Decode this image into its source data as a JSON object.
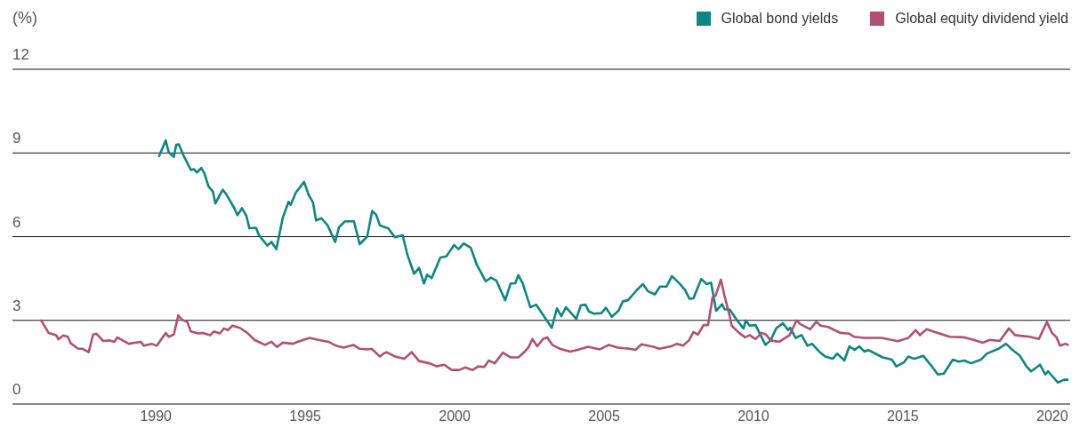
{
  "chart_data": {
    "type": "line",
    "ylabel": "(%)",
    "legend": "top right",
    "grid": "y",
    "line_style": "solid",
    "xlim": [
      1985.2,
      2020.6
    ],
    "xticks": [
      1990,
      1995,
      2000,
      2005,
      2010,
      2015,
      2020
    ],
    "ylim": [
      0,
      12
    ],
    "yticks": [
      0,
      3,
      6,
      9,
      12
    ],
    "series": [
      {
        "name": "Global bond yields",
        "color": "#0f8585",
        "x": [
          1990.11,
          1990.33,
          1990.43,
          1990.6,
          1990.68,
          1990.77,
          1990.92,
          1991.17,
          1991.27,
          1991.37,
          1991.52,
          1991.62,
          1991.76,
          1991.91,
          1991.99,
          1992.11,
          1992.24,
          1992.36,
          1992.63,
          1992.73,
          1992.88,
          1993.03,
          1993.13,
          1993.35,
          1993.45,
          1993.73,
          1993.87,
          1994.03,
          1994.25,
          1994.44,
          1994.51,
          1994.69,
          1994.96,
          1995.12,
          1995.26,
          1995.36,
          1995.54,
          1995.75,
          1996.0,
          1996.13,
          1996.33,
          1996.63,
          1996.82,
          1997.07,
          1997.24,
          1997.37,
          1997.5,
          1997.77,
          1998.0,
          1998.26,
          1998.41,
          1998.64,
          1998.81,
          1998.97,
          1999.08,
          1999.23,
          1999.52,
          1999.72,
          1999.98,
          2000.13,
          2000.3,
          2000.54,
          2000.74,
          2001.04,
          2001.21,
          2001.39,
          2001.69,
          2001.87,
          2002.03,
          2002.13,
          2002.28,
          2002.53,
          2002.73,
          2003.03,
          2003.25,
          2003.42,
          2003.57,
          2003.72,
          2004.07,
          2004.22,
          2004.38,
          2004.49,
          2004.66,
          2004.91,
          2005.06,
          2005.26,
          2005.48,
          2005.63,
          2005.8,
          2006.1,
          2006.3,
          2006.47,
          2006.7,
          2006.87,
          2007.09,
          2007.27,
          2007.54,
          2007.72,
          2007.86,
          2007.99,
          2008.25,
          2008.43,
          2008.58,
          2008.75,
          2008.95,
          2009.03,
          2009.21,
          2009.47,
          2009.67,
          2009.74,
          2009.87,
          2010.07,
          2010.4,
          2010.57,
          2010.76,
          2010.98,
          2011.16,
          2011.23,
          2011.41,
          2011.61,
          2011.81,
          2011.96,
          2012.2,
          2012.4,
          2012.65,
          2012.8,
          2013.04,
          2013.21,
          2013.39,
          2013.54,
          2013.71,
          2013.84,
          2014.18,
          2014.33,
          2014.63,
          2014.78,
          2015.03,
          2015.18,
          2015.38,
          2015.68,
          2015.97,
          2016.17,
          2016.37,
          2016.67,
          2016.87,
          2017.06,
          2017.28,
          2017.61,
          2017.81,
          2018.2,
          2018.45,
          2018.7,
          2018.9,
          2019.15,
          2019.29,
          2019.59,
          2019.76,
          2019.86,
          2020.19,
          2020.39,
          2020.51
        ],
        "values": [
          8.89,
          9.45,
          9.02,
          8.86,
          9.29,
          9.31,
          8.92,
          8.39,
          8.42,
          8.3,
          8.46,
          8.28,
          7.8,
          7.61,
          7.19,
          7.43,
          7.68,
          7.51,
          7.01,
          6.77,
          7.02,
          6.74,
          6.3,
          6.32,
          6.05,
          5.68,
          5.81,
          5.55,
          6.69,
          7.25,
          7.14,
          7.59,
          7.96,
          7.48,
          7.22,
          6.58,
          6.66,
          6.4,
          5.81,
          6.34,
          6.55,
          6.55,
          5.73,
          6.0,
          6.92,
          6.79,
          6.4,
          6.3,
          5.98,
          6.05,
          5.38,
          4.67,
          4.88,
          4.32,
          4.64,
          4.51,
          5.25,
          5.29,
          5.7,
          5.55,
          5.76,
          5.6,
          4.99,
          4.4,
          4.53,
          4.43,
          3.72,
          4.32,
          4.33,
          4.62,
          4.32,
          3.47,
          3.56,
          3.08,
          2.73,
          3.43,
          3.15,
          3.47,
          3.05,
          3.54,
          3.56,
          3.32,
          3.24,
          3.26,
          3.45,
          3.13,
          3.34,
          3.68,
          3.72,
          4.09,
          4.3,
          4.04,
          3.93,
          4.21,
          4.21,
          4.59,
          4.3,
          4.07,
          3.77,
          3.79,
          4.48,
          4.3,
          4.35,
          3.34,
          3.58,
          3.4,
          3.38,
          2.97,
          2.71,
          3.0,
          2.81,
          2.83,
          2.12,
          2.28,
          2.71,
          2.9,
          2.65,
          2.73,
          2.37,
          2.47,
          2.09,
          2.16,
          1.88,
          1.7,
          1.62,
          1.81,
          1.56,
          2.07,
          1.94,
          2.07,
          1.88,
          1.94,
          1.75,
          1.67,
          1.59,
          1.35,
          1.49,
          1.7,
          1.62,
          1.73,
          1.35,
          1.06,
          1.09,
          1.59,
          1.52,
          1.56,
          1.46,
          1.59,
          1.81,
          1.98,
          2.16,
          1.91,
          1.75,
          1.33,
          1.17,
          1.41,
          1.06,
          1.17,
          0.77,
          0.87,
          0.87
        ]
      },
      {
        "name": "Global equity dividend yield",
        "color": "#b05075",
        "x": [
          1986.16,
          1986.41,
          1986.66,
          1986.74,
          1986.9,
          1987.05,
          1987.15,
          1987.4,
          1987.55,
          1987.75,
          1987.9,
          1988.01,
          1988.24,
          1988.44,
          1988.61,
          1988.71,
          1989.09,
          1989.49,
          1989.6,
          1989.86,
          1990.03,
          1990.33,
          1990.43,
          1990.6,
          1990.75,
          1990.87,
          1991.05,
          1991.17,
          1991.42,
          1991.57,
          1991.82,
          1991.94,
          1992.14,
          1992.28,
          1992.41,
          1992.56,
          1992.81,
          1993.06,
          1993.3,
          1993.65,
          1993.87,
          1994.05,
          1994.25,
          1994.59,
          1994.74,
          1995.14,
          1995.44,
          1995.78,
          1996.03,
          1996.28,
          1996.61,
          1996.82,
          1997.07,
          1997.22,
          1997.5,
          1997.62,
          1997.72,
          1998.01,
          1998.31,
          1998.56,
          1998.81,
          1999.16,
          1999.4,
          1999.65,
          1999.9,
          2000.15,
          2000.35,
          2000.6,
          2000.79,
          2000.99,
          2001.14,
          2001.34,
          2001.61,
          2001.88,
          2002.13,
          2002.33,
          2002.48,
          2002.6,
          2002.76,
          2002.96,
          2003.1,
          2003.27,
          2003.52,
          2003.87,
          2004.17,
          2004.46,
          2004.86,
          2005.16,
          2005.46,
          2005.85,
          2006.05,
          2006.25,
          2006.65,
          2006.85,
          2007.24,
          2007.44,
          2007.64,
          2007.84,
          2007.99,
          2008.14,
          2008.33,
          2008.48,
          2008.63,
          2008.73,
          2008.91,
          2009.03,
          2009.21,
          2009.27,
          2009.52,
          2009.72,
          2009.87,
          2010.07,
          2010.27,
          2010.42,
          2010.57,
          2010.86,
          2011.21,
          2011.44,
          2011.56,
          2011.9,
          2012.1,
          2012.25,
          2012.5,
          2012.9,
          2013.21,
          2013.37,
          2013.69,
          2014.29,
          2014.83,
          2015.18,
          2015.43,
          2015.57,
          2015.79,
          2016.17,
          2016.57,
          2017.06,
          2017.36,
          2017.68,
          2017.91,
          2018.24,
          2018.55,
          2018.75,
          2019.0,
          2019.25,
          2019.55,
          2019.82,
          2019.99,
          2020.14,
          2020.26,
          2020.44,
          2020.52
        ],
        "values": [
          3.0,
          2.55,
          2.47,
          2.32,
          2.46,
          2.41,
          2.18,
          1.98,
          1.98,
          1.86,
          2.49,
          2.52,
          2.26,
          2.28,
          2.23,
          2.39,
          2.16,
          2.23,
          2.09,
          2.16,
          2.09,
          2.55,
          2.41,
          2.49,
          3.18,
          3.03,
          2.94,
          2.6,
          2.53,
          2.55,
          2.47,
          2.6,
          2.53,
          2.71,
          2.65,
          2.81,
          2.73,
          2.55,
          2.3,
          2.12,
          2.23,
          2.05,
          2.2,
          2.16,
          2.23,
          2.37,
          2.3,
          2.23,
          2.09,
          2.02,
          2.12,
          1.98,
          1.96,
          1.98,
          1.7,
          1.81,
          1.86,
          1.7,
          1.62,
          1.86,
          1.54,
          1.46,
          1.35,
          1.41,
          1.22,
          1.22,
          1.31,
          1.22,
          1.35,
          1.33,
          1.56,
          1.46,
          1.84,
          1.67,
          1.67,
          1.86,
          2.05,
          2.33,
          2.07,
          2.33,
          2.39,
          2.12,
          1.98,
          1.88,
          1.96,
          2.05,
          1.96,
          2.12,
          2.02,
          1.98,
          1.94,
          2.14,
          2.05,
          1.98,
          2.07,
          2.16,
          2.09,
          2.28,
          2.58,
          2.49,
          2.83,
          2.83,
          3.82,
          3.88,
          4.46,
          3.88,
          3.13,
          2.81,
          2.55,
          2.39,
          2.47,
          2.33,
          2.55,
          2.49,
          2.28,
          2.23,
          2.47,
          3.0,
          2.87,
          2.68,
          2.95,
          2.81,
          2.76,
          2.55,
          2.52,
          2.41,
          2.37,
          2.37,
          2.25,
          2.37,
          2.65,
          2.47,
          2.68,
          2.55,
          2.41,
          2.39,
          2.3,
          2.2,
          2.3,
          2.26,
          2.71,
          2.47,
          2.44,
          2.41,
          2.33,
          2.94,
          2.55,
          2.39,
          2.09,
          2.16,
          2.12
        ]
      }
    ]
  }
}
